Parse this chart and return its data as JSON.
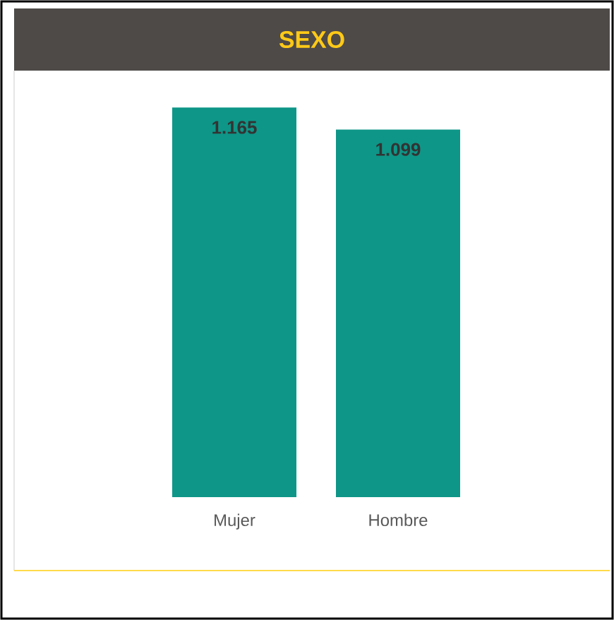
{
  "chart_data": {
    "type": "bar",
    "title": "SEXO",
    "categories": [
      "Mujer",
      "Hombre"
    ],
    "values": [
      1165,
      1099
    ],
    "value_labels": [
      "1.165",
      "1.099"
    ],
    "color": "#0e9688"
  }
}
